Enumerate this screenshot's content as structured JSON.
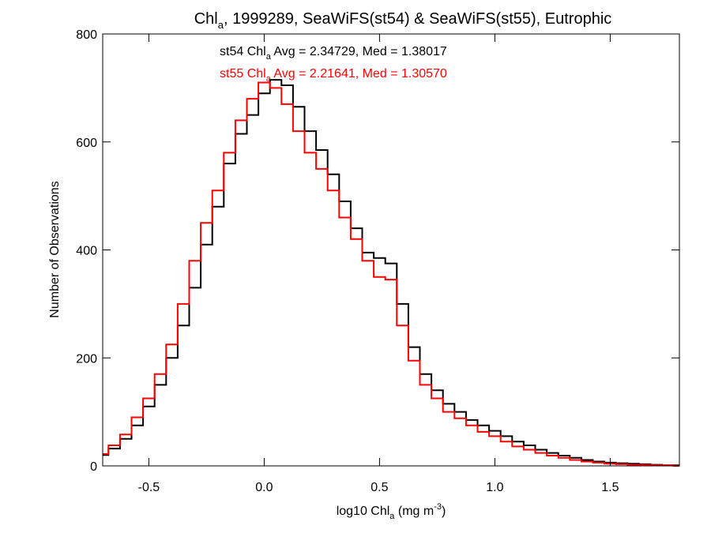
{
  "chart_data": {
    "type": "line",
    "step": true,
    "title": {
      "prefix": "Chl",
      "sub": "a",
      "suffix": ", 1999289, SeaWiFS(st54) & SeaWiFS(st55), Eutrophic"
    },
    "xlabel": {
      "prefix": "log10 Chl",
      "sub": "a",
      "mid": " (mg m",
      "sup": "-3",
      "suffix": ")"
    },
    "ylabel": "Number of Observations",
    "xlim": [
      -0.7,
      1.8
    ],
    "ylim": [
      0,
      800
    ],
    "xticks": [
      {
        "value": -0.5,
        "label": "-0.5"
      },
      {
        "value": 0.0,
        "label": "0.0"
      },
      {
        "value": 0.5,
        "label": "0.5"
      },
      {
        "value": 1.0,
        "label": "1.0"
      },
      {
        "value": 1.5,
        "label": "1.5"
      }
    ],
    "yticks": [
      {
        "value": 0,
        "label": "0"
      },
      {
        "value": 200,
        "label": "200"
      },
      {
        "value": 400,
        "label": "400"
      },
      {
        "value": 600,
        "label": "600"
      },
      {
        "value": 800,
        "label": "800"
      }
    ],
    "annotations": [
      {
        "prefix": "st54 Chl",
        "sub": "a",
        "suffix": " Avg = 2.34729, Med = 1.38017",
        "color": "#000000"
      },
      {
        "prefix": "st55 Chl",
        "sub": "a",
        "suffix": " Avg = 2.21641, Med = 1.30570",
        "color": "#ff0000"
      }
    ],
    "x": [
      -0.7,
      -0.65,
      -0.6,
      -0.55,
      -0.5,
      -0.45,
      -0.4,
      -0.35,
      -0.3,
      -0.25,
      -0.2,
      -0.15,
      -0.1,
      -0.05,
      0.0,
      0.05,
      0.1,
      0.15,
      0.2,
      0.25,
      0.3,
      0.35,
      0.4,
      0.45,
      0.5,
      0.55,
      0.6,
      0.65,
      0.7,
      0.75,
      0.8,
      0.85,
      0.9,
      0.95,
      1.0,
      1.05,
      1.1,
      1.15,
      1.2,
      1.25,
      1.3,
      1.35,
      1.4,
      1.45,
      1.5,
      1.55,
      1.6,
      1.65,
      1.7,
      1.75,
      1.8
    ],
    "series": [
      {
        "name": "st54",
        "color": "#000000",
        "values": [
          20,
          32,
          50,
          75,
          110,
          150,
          200,
          260,
          330,
          410,
          480,
          560,
          615,
          650,
          690,
          715,
          705,
          665,
          620,
          585,
          540,
          490,
          440,
          395,
          385,
          375,
          300,
          220,
          170,
          140,
          115,
          100,
          85,
          75,
          65,
          55,
          45,
          38,
          30,
          24,
          19,
          15,
          11,
          8,
          6,
          5,
          4,
          3,
          2,
          1,
          1
        ]
      },
      {
        "name": "st55",
        "color": "#ff0000",
        "values": [
          22,
          38,
          58,
          90,
          125,
          170,
          225,
          300,
          380,
          450,
          510,
          580,
          640,
          680,
          710,
          700,
          670,
          620,
          580,
          550,
          510,
          460,
          420,
          380,
          350,
          345,
          260,
          195,
          150,
          125,
          100,
          88,
          75,
          63,
          55,
          45,
          36,
          30,
          24,
          19,
          15,
          11,
          8,
          6,
          4,
          3,
          2,
          2,
          1,
          1,
          0
        ]
      }
    ]
  }
}
